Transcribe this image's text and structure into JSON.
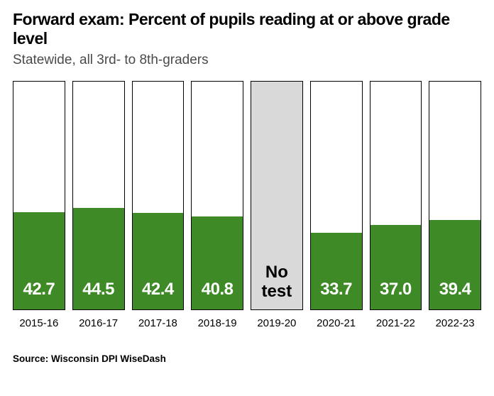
{
  "title": "Forward exam: Percent of pupils reading at or above grade level",
  "subtitle": "Statewide, all 3rd- to 8th-graders",
  "source": "Source: Wisconsin DPI WiseDash",
  "chart": {
    "type": "bar",
    "ylim_max": 100,
    "fill_color": "#3e8a27",
    "border_color": "#000000",
    "background_color": "#ffffff",
    "notest_bg_color": "#d9d9d9",
    "value_fontsize": 24,
    "value_color": "#ffffff",
    "xlabel_fontsize": 15,
    "bars": [
      {
        "label": "2015-16",
        "value": 42.7,
        "display": "42.7"
      },
      {
        "label": "2016-17",
        "value": 44.5,
        "display": "44.5"
      },
      {
        "label": "2017-18",
        "value": 42.4,
        "display": "42.4"
      },
      {
        "label": "2018-19",
        "value": 40.8,
        "display": "40.8"
      },
      {
        "label": "2019-20",
        "value": null,
        "display": "No\ntest"
      },
      {
        "label": "2020-21",
        "value": 33.7,
        "display": "33.7"
      },
      {
        "label": "2021-22",
        "value": 37.0,
        "display": "37.0"
      },
      {
        "label": "2022-23",
        "value": 39.4,
        "display": "39.4"
      }
    ]
  }
}
